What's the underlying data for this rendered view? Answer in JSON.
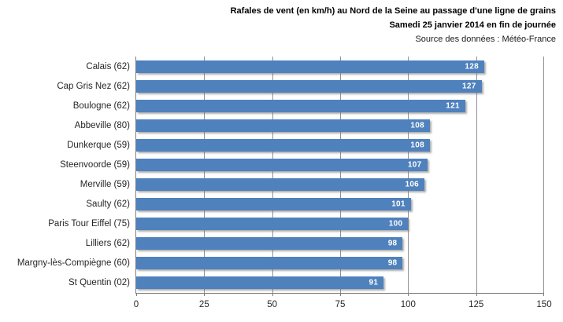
{
  "title": {
    "line1": "Rafales de vent  (en km/h) au Nord de la Seine au passage  d'une ligne de grains",
    "line2": "Samedi 25 janvier  2014 en fin de journée",
    "line3": "Source des données : Météo-France"
  },
  "chart_data": {
    "type": "bar",
    "orientation": "horizontal",
    "title": "Rafales de vent (en km/h) au Nord de la Seine au passage d'une ligne de grains",
    "subtitle": "Samedi 25 janvier 2014 en fin de journée",
    "source": "Source des données : Météo-France",
    "categories": [
      "Calais (62)",
      "Cap Gris Nez (62)",
      "Boulogne (62)",
      "Abbeville (80)",
      "Dunkerque (59)",
      "Steenvoorde (59)",
      "Merville (59)",
      "Saulty (62)",
      "Paris Tour Eiffel (75)",
      "Lilliers (62)",
      "Margny-lès-Compiègne (60)",
      "St Quentin (02)"
    ],
    "values": [
      128,
      127,
      121,
      108,
      108,
      107,
      106,
      101,
      100,
      98,
      98,
      91
    ],
    "data_labels": true,
    "xlim": [
      0,
      150
    ],
    "xticks": [
      0,
      25,
      50,
      75,
      100,
      125,
      150
    ],
    "grid": true,
    "legend": false,
    "colors": {
      "bar": "#4F81BD",
      "data_label": "#FFFFFF",
      "gridline": "#919191",
      "axis_line": "#7F7F7F",
      "text": "#262626"
    }
  }
}
